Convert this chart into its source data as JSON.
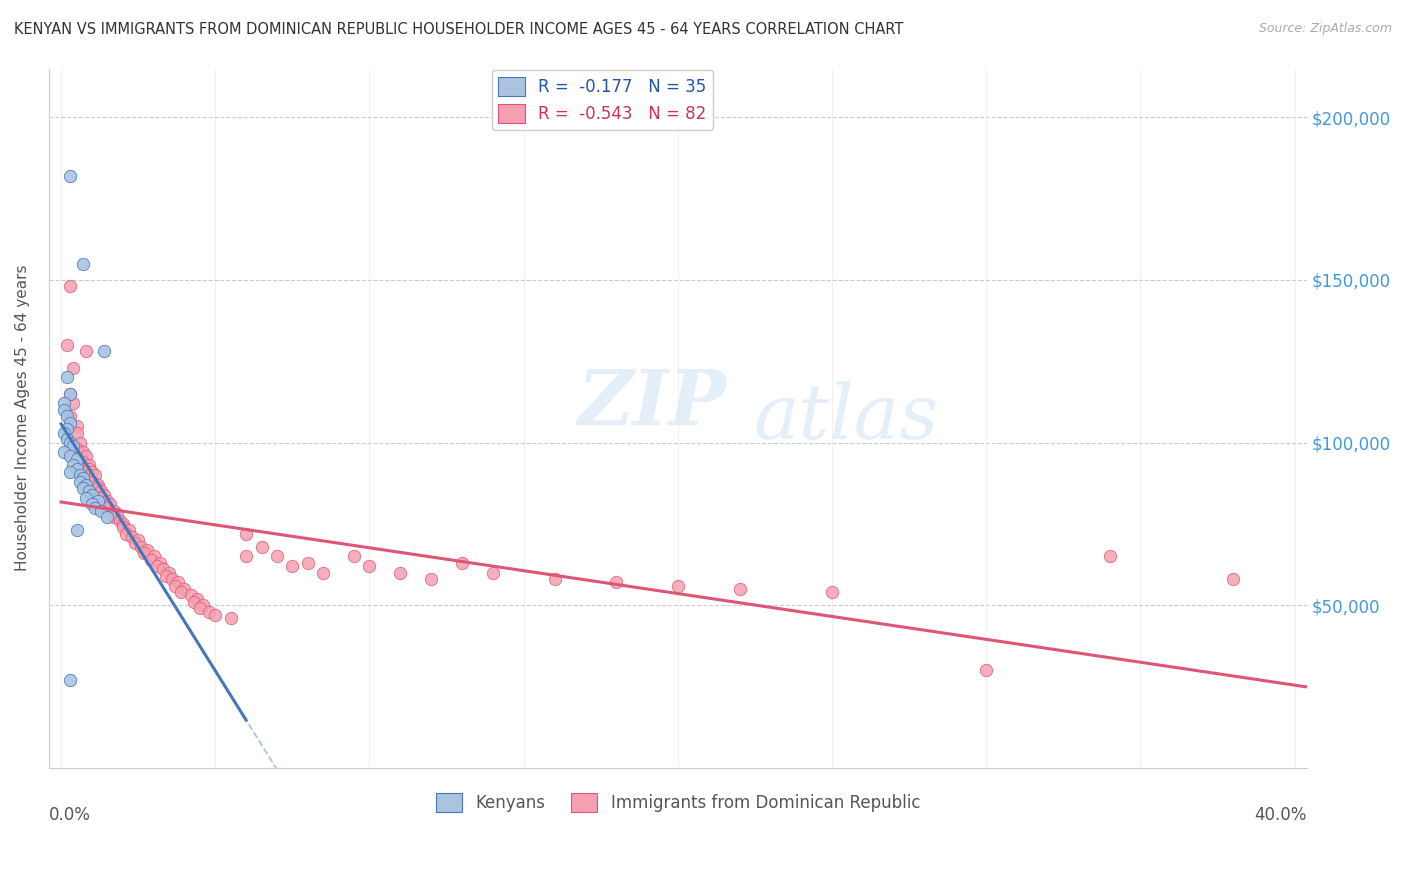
{
  "title": "KENYAN VS IMMIGRANTS FROM DOMINICAN REPUBLIC HOUSEHOLDER INCOME AGES 45 - 64 YEARS CORRELATION CHART",
  "source": "Source: ZipAtlas.com",
  "ylabel": "Householder Income Ages 45 - 64 years",
  "bg_color": "#ffffff",
  "grid_color": "#cccccc",
  "kenyan_color": "#aac4e0",
  "dr_color": "#f4a0b0",
  "kenyan_line_color": "#4477bb",
  "dr_line_color": "#e05575",
  "kenyan_dashed_color": "#88aacc",
  "legend_kenyan": "R =  -0.177   N = 35",
  "legend_dr": "R =  -0.543   N = 82",
  "legend_label_kenyan": "Kenyans",
  "legend_label_dr": "Immigrants from Dominican Republic",
  "ylim": [
    0,
    215000
  ],
  "xlim": [
    -0.004,
    0.404
  ],
  "watermark_top": "ZIP",
  "watermark_bot": "atlas",
  "kenyan_points": [
    [
      0.003,
      182000
    ],
    [
      0.007,
      155000
    ],
    [
      0.014,
      128000
    ],
    [
      0.002,
      120000
    ],
    [
      0.003,
      115000
    ],
    [
      0.001,
      112000
    ],
    [
      0.001,
      110000
    ],
    [
      0.002,
      108000
    ],
    [
      0.003,
      106000
    ],
    [
      0.002,
      104000
    ],
    [
      0.001,
      103000
    ],
    [
      0.002,
      101000
    ],
    [
      0.003,
      100000
    ],
    [
      0.004,
      99000
    ],
    [
      0.001,
      97000
    ],
    [
      0.003,
      96000
    ],
    [
      0.005,
      95000
    ],
    [
      0.004,
      93000
    ],
    [
      0.005,
      92000
    ],
    [
      0.003,
      91000
    ],
    [
      0.006,
      90000
    ],
    [
      0.007,
      89000
    ],
    [
      0.006,
      88000
    ],
    [
      0.008,
      87000
    ],
    [
      0.007,
      86000
    ],
    [
      0.009,
      85000
    ],
    [
      0.01,
      84000
    ],
    [
      0.008,
      83000
    ],
    [
      0.012,
      82000
    ],
    [
      0.01,
      81000
    ],
    [
      0.011,
      80000
    ],
    [
      0.013,
      79000
    ],
    [
      0.015,
      77000
    ],
    [
      0.003,
      27000
    ],
    [
      0.005,
      73000
    ]
  ],
  "dr_points": [
    [
      0.003,
      148000
    ],
    [
      0.002,
      130000
    ],
    [
      0.008,
      128000
    ],
    [
      0.004,
      123000
    ],
    [
      0.003,
      115000
    ],
    [
      0.004,
      112000
    ],
    [
      0.003,
      108000
    ],
    [
      0.005,
      105000
    ],
    [
      0.005,
      103000
    ],
    [
      0.006,
      100000
    ],
    [
      0.005,
      98000
    ],
    [
      0.007,
      97000
    ],
    [
      0.008,
      96000
    ],
    [
      0.007,
      94000
    ],
    [
      0.009,
      93000
    ],
    [
      0.009,
      92000
    ],
    [
      0.01,
      91000
    ],
    [
      0.011,
      90000
    ],
    [
      0.01,
      88000
    ],
    [
      0.012,
      87000
    ],
    [
      0.012,
      86000
    ],
    [
      0.013,
      85000
    ],
    [
      0.014,
      84000
    ],
    [
      0.013,
      83000
    ],
    [
      0.015,
      82000
    ],
    [
      0.016,
      81000
    ],
    [
      0.015,
      80000
    ],
    [
      0.017,
      79000
    ],
    [
      0.018,
      78000
    ],
    [
      0.017,
      77000
    ],
    [
      0.019,
      76000
    ],
    [
      0.02,
      75000
    ],
    [
      0.02,
      74000
    ],
    [
      0.022,
      73000
    ],
    [
      0.021,
      72000
    ],
    [
      0.023,
      71000
    ],
    [
      0.025,
      70000
    ],
    [
      0.024,
      69000
    ],
    [
      0.026,
      68000
    ],
    [
      0.028,
      67000
    ],
    [
      0.027,
      66000
    ],
    [
      0.03,
      65000
    ],
    [
      0.029,
      64000
    ],
    [
      0.032,
      63000
    ],
    [
      0.031,
      62000
    ],
    [
      0.033,
      61000
    ],
    [
      0.035,
      60000
    ],
    [
      0.034,
      59000
    ],
    [
      0.036,
      58000
    ],
    [
      0.038,
      57000
    ],
    [
      0.037,
      56000
    ],
    [
      0.04,
      55000
    ],
    [
      0.039,
      54000
    ],
    [
      0.042,
      53000
    ],
    [
      0.044,
      52000
    ],
    [
      0.043,
      51000
    ],
    [
      0.046,
      50000
    ],
    [
      0.045,
      49000
    ],
    [
      0.048,
      48000
    ],
    [
      0.05,
      47000
    ],
    [
      0.055,
      46000
    ],
    [
      0.06,
      72000
    ],
    [
      0.06,
      65000
    ],
    [
      0.065,
      68000
    ],
    [
      0.07,
      65000
    ],
    [
      0.075,
      62000
    ],
    [
      0.08,
      63000
    ],
    [
      0.085,
      60000
    ],
    [
      0.095,
      65000
    ],
    [
      0.1,
      62000
    ],
    [
      0.11,
      60000
    ],
    [
      0.12,
      58000
    ],
    [
      0.13,
      63000
    ],
    [
      0.14,
      60000
    ],
    [
      0.16,
      58000
    ],
    [
      0.18,
      57000
    ],
    [
      0.2,
      56000
    ],
    [
      0.22,
      55000
    ],
    [
      0.25,
      54000
    ],
    [
      0.3,
      30000
    ],
    [
      0.34,
      65000
    ],
    [
      0.38,
      58000
    ]
  ]
}
